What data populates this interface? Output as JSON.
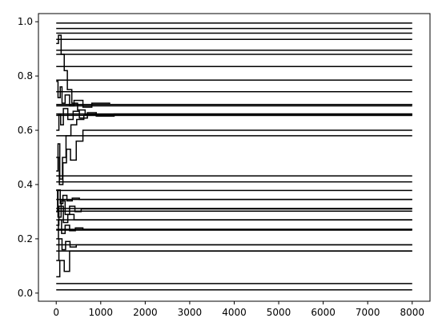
{
  "chart_data": {
    "type": "line",
    "title": "",
    "xlabel": "",
    "ylabel": "",
    "xlim": [
      -400,
      8400
    ],
    "ylim": [
      -0.03,
      1.03
    ],
    "grid": false,
    "line_color": "#000000",
    "x_ticks": [
      0,
      1000,
      2000,
      3000,
      4000,
      5000,
      6000,
      7000,
      8000
    ],
    "x_tick_labels": [
      "0",
      "1000",
      "2000",
      "3000",
      "4000",
      "5000",
      "6000",
      "7000",
      "8000"
    ],
    "y_ticks": [
      0.0,
      0.2,
      0.4,
      0.6,
      0.8,
      1.0
    ],
    "y_tick_labels": [
      "0.0",
      "0.2",
      "0.4",
      "0.6",
      "0.8",
      "1.0"
    ],
    "series": [
      {
        "x": [
          0,
          8000
        ],
        "y": [
          0.995,
          0.995
        ]
      },
      {
        "x": [
          0,
          8000
        ],
        "y": [
          0.975,
          0.975
        ]
      },
      {
        "x": [
          0,
          8000
        ],
        "y": [
          0.958,
          0.958
        ]
      },
      {
        "x": [
          0,
          8000
        ],
        "y": [
          0.935,
          0.935
        ]
      },
      {
        "x": [
          0,
          8000
        ],
        "y": [
          0.895,
          0.895
        ]
      },
      {
        "x": [
          0,
          8000
        ],
        "y": [
          0.88,
          0.88
        ]
      },
      {
        "x": [
          0,
          8000
        ],
        "y": [
          0.835,
          0.835
        ]
      },
      {
        "x": [
          0,
          8000
        ],
        "y": [
          0.785,
          0.785
        ]
      },
      {
        "x": [
          0,
          8000
        ],
        "y": [
          0.742,
          0.742
        ]
      },
      {
        "x": [
          0,
          8000
        ],
        "y": [
          0.695,
          0.695
        ]
      },
      {
        "x": [
          0,
          8000
        ],
        "y": [
          0.69,
          0.69
        ]
      },
      {
        "x": [
          0,
          8000
        ],
        "y": [
          0.66,
          0.66
        ]
      },
      {
        "x": [
          0,
          8000
        ],
        "y": [
          0.655,
          0.655
        ]
      },
      {
        "x": [
          0,
          8000
        ],
        "y": [
          0.58,
          0.58
        ]
      },
      {
        "x": [
          0,
          8000
        ],
        "y": [
          0.432,
          0.432
        ]
      },
      {
        "x": [
          0,
          8000
        ],
        "y": [
          0.41,
          0.41
        ]
      },
      {
        "x": [
          0,
          8000
        ],
        "y": [
          0.378,
          0.378
        ]
      },
      {
        "x": [
          0,
          8000
        ],
        "y": [
          0.345,
          0.345
        ]
      },
      {
        "x": [
          0,
          8000
        ],
        "y": [
          0.312,
          0.312
        ]
      },
      {
        "x": [
          0,
          8000
        ],
        "y": [
          0.302,
          0.302
        ]
      },
      {
        "x": [
          0,
          8000
        ],
        "y": [
          0.27,
          0.27
        ]
      },
      {
        "x": [
          0,
          8000
        ],
        "y": [
          0.235,
          0.235
        ]
      },
      {
        "x": [
          0,
          8000
        ],
        "y": [
          0.232,
          0.232
        ]
      },
      {
        "x": [
          0,
          8000
        ],
        "y": [
          0.178,
          0.178
        ]
      },
      {
        "x": [
          0,
          8000
        ],
        "y": [
          0.155,
          0.155
        ]
      },
      {
        "x": [
          0,
          8000
        ],
        "y": [
          0.035,
          0.035
        ]
      },
      {
        "x": [
          0,
          8000
        ],
        "y": [
          0.012,
          0.012
        ]
      },
      {
        "x": [
          0,
          40,
          40,
          90,
          90,
          130,
          130,
          200,
          200,
          300,
          300,
          400,
          400,
          600,
          600,
          800,
          800,
          1200,
          1200,
          8000
        ],
        "y": [
          0.78,
          0.78,
          0.72,
          0.72,
          0.76,
          0.76,
          0.7,
          0.7,
          0.73,
          0.73,
          0.69,
          0.69,
          0.71,
          0.71,
          0.685,
          0.685,
          0.7,
          0.7,
          0.695,
          0.695
        ]
      },
      {
        "x": [
          0,
          60,
          60,
          100,
          100,
          160,
          160,
          260,
          260,
          380,
          380,
          520,
          520,
          700,
          700,
          900,
          900,
          1300,
          1300,
          8000
        ],
        "y": [
          0.6,
          0.6,
          0.66,
          0.66,
          0.62,
          0.62,
          0.68,
          0.68,
          0.64,
          0.64,
          0.67,
          0.67,
          0.645,
          0.645,
          0.665,
          0.665,
          0.652,
          0.652,
          0.66,
          0.66
        ]
      },
      {
        "x": [
          0,
          50,
          50,
          110,
          110,
          180,
          180,
          250,
          250,
          350,
          350,
          480,
          480,
          650,
          650,
          8000
        ],
        "y": [
          0.92,
          0.92,
          0.95,
          0.95,
          0.88,
          0.88,
          0.82,
          0.82,
          0.75,
          0.75,
          0.7,
          0.7,
          0.675,
          0.675,
          0.658,
          0.658
        ]
      },
      {
        "x": [
          0,
          40,
          40,
          80,
          80,
          140,
          140,
          220,
          220,
          330,
          330,
          460,
          460,
          620,
          620,
          8000
        ],
        "y": [
          0.45,
          0.45,
          0.55,
          0.55,
          0.42,
          0.42,
          0.5,
          0.5,
          0.58,
          0.58,
          0.62,
          0.62,
          0.64,
          0.64,
          0.655,
          0.655
        ]
      },
      {
        "x": [
          0,
          70,
          70,
          150,
          150,
          230,
          230,
          320,
          320,
          450,
          450,
          600,
          600,
          8000
        ],
        "y": [
          0.5,
          0.5,
          0.4,
          0.4,
          0.48,
          0.48,
          0.53,
          0.53,
          0.49,
          0.49,
          0.56,
          0.56,
          0.6,
          0.6
        ]
      },
      {
        "x": [
          0,
          30,
          30,
          90,
          90,
          150,
          150,
          240,
          240,
          360,
          360,
          520,
          520,
          8000
        ],
        "y": [
          0.3,
          0.3,
          0.38,
          0.38,
          0.33,
          0.33,
          0.36,
          0.36,
          0.34,
          0.34,
          0.35,
          0.35,
          0.345,
          0.345
        ]
      },
      {
        "x": [
          0,
          50,
          50,
          120,
          120,
          200,
          200,
          300,
          300,
          430,
          430,
          600,
          600,
          8000
        ],
        "y": [
          0.2,
          0.2,
          0.27,
          0.27,
          0.22,
          0.22,
          0.25,
          0.25,
          0.23,
          0.23,
          0.24,
          0.24,
          0.235,
          0.235
        ]
      },
      {
        "x": [
          0,
          60,
          60,
          130,
          130,
          210,
          210,
          310,
          310,
          450,
          450,
          8000
        ],
        "y": [
          0.12,
          0.12,
          0.2,
          0.2,
          0.16,
          0.16,
          0.19,
          0.19,
          0.17,
          0.17,
          0.178,
          0.178
        ]
      },
      {
        "x": [
          0,
          40,
          40,
          110,
          110,
          200,
          200,
          300,
          300,
          420,
          420,
          560,
          560,
          8000
        ],
        "y": [
          0.38,
          0.38,
          0.28,
          0.28,
          0.34,
          0.34,
          0.29,
          0.29,
          0.32,
          0.32,
          0.3,
          0.3,
          0.31,
          0.31
        ]
      },
      {
        "x": [
          0,
          80,
          80,
          180,
          180,
          300,
          300,
          8000
        ],
        "y": [
          0.06,
          0.06,
          0.12,
          0.12,
          0.08,
          0.08,
          0.155,
          0.155
        ]
      },
      {
        "x": [
          0,
          60,
          60,
          160,
          160,
          260,
          260,
          400,
          400,
          8000
        ],
        "y": [
          0.25,
          0.25,
          0.32,
          0.32,
          0.26,
          0.26,
          0.29,
          0.29,
          0.27,
          0.27
        ]
      }
    ]
  }
}
